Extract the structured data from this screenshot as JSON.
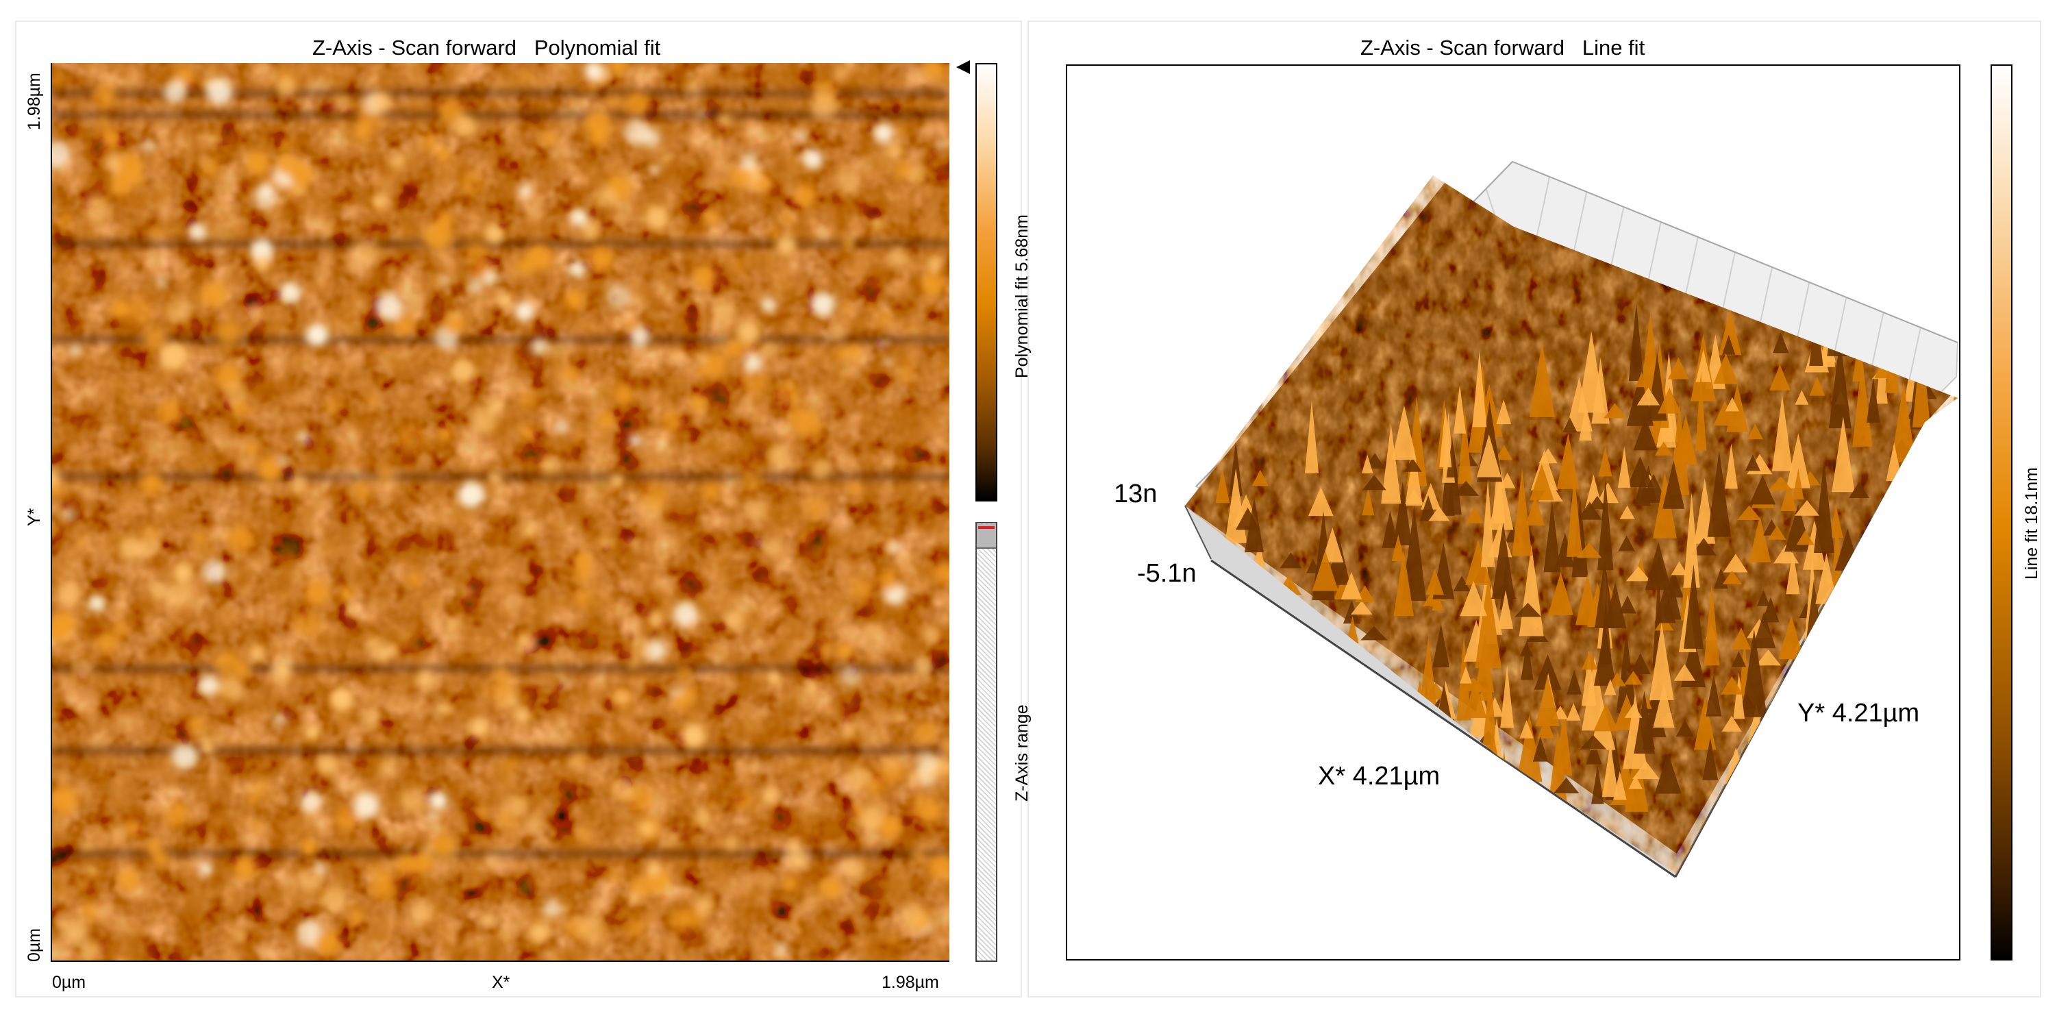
{
  "left_panel": {
    "title": "Z-Axis - Scan forward   Polynomial fit",
    "y_max_label": "1.98µm",
    "y_axis_label": "Y*",
    "y_min_label": "0µm",
    "x_min_label": "0µm",
    "x_axis_label": "X*",
    "x_max_label": "1.98µm",
    "colorbar_label": "Polynomial fit 5.68nm",
    "range_label": "Z-Axis range"
  },
  "right_panel": {
    "title": "Z-Axis - Scan forward   Line fit",
    "z_max_label": "13n",
    "z_min_label": "-5.1n",
    "x_axis_label": "X* 4.21µm",
    "y_axis_label": "Y* 4.21µm",
    "colorbar_label": "Line fit 18.1nm"
  },
  "colors": {
    "afm_base": "#c06a00",
    "afm_highlight": "#ffe7bd",
    "afm_shadow": "#1c0d00",
    "grid_wall": "#dcdcdc"
  }
}
